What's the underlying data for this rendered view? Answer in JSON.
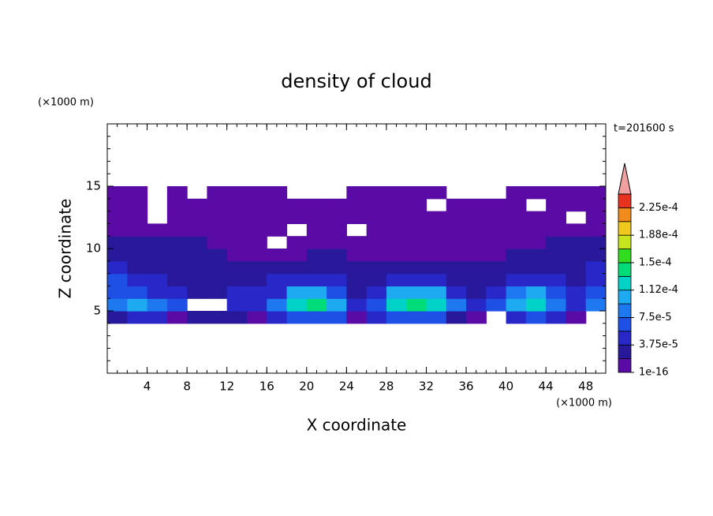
{
  "chart_data": {
    "type": "contour",
    "title": "density of cloud",
    "x_label": "X coordinate",
    "y_label": "Z coordinate",
    "x_unit": "(×1000 m)",
    "y_unit": "(×1000 m)",
    "annotation": "t=201600 s",
    "xlim": [
      0,
      50
    ],
    "ylim": [
      0,
      20
    ],
    "xticks": [
      4,
      8,
      12,
      16,
      20,
      24,
      28,
      32,
      36,
      40,
      44,
      48
    ],
    "yticks": [
      5,
      10,
      15
    ],
    "minor_tick_step": 1,
    "x": [
      1,
      3,
      5,
      7,
      9,
      11,
      13,
      15,
      17,
      19,
      21,
      23,
      25,
      27,
      29,
      31,
      33,
      35,
      37,
      39,
      41,
      43,
      45,
      47,
      49
    ],
    "z": [
      4.5,
      5.5,
      6.5,
      7.5,
      8.5,
      9.5,
      10.5,
      11.5,
      12.5,
      13.5,
      14.5
    ],
    "values": [
      [
        3e-05,
        5e-05,
        5e-05,
        1e-05,
        3e-05,
        3e-05,
        3e-05,
        1e-05,
        5e-05,
        7e-05,
        7e-05,
        7e-05,
        1e-05,
        5e-05,
        7e-05,
        7e-05,
        7e-05,
        3e-05,
        1e-05,
        null,
        5e-05,
        7e-05,
        5e-05,
        1e-05,
        null
      ],
      [
        9e-05,
        0.000105,
        9e-05,
        7e-05,
        null,
        null,
        5e-05,
        5e-05,
        9e-05,
        0.00012,
        0.00014,
        0.000105,
        5e-05,
        7e-05,
        0.00012,
        0.00014,
        0.00012,
        9e-05,
        5e-05,
        7e-05,
        0.000105,
        0.00012,
        9e-05,
        5e-05,
        9e-05
      ],
      [
        7e-05,
        7e-05,
        5e-05,
        5e-05,
        3e-05,
        3e-05,
        5e-05,
        5e-05,
        5e-05,
        0.000105,
        0.000105,
        7e-05,
        3e-05,
        5e-05,
        0.000105,
        0.000105,
        0.000105,
        5e-05,
        3e-05,
        5e-05,
        9e-05,
        0.000105,
        7e-05,
        5e-05,
        7e-05
      ],
      [
        7e-05,
        5e-05,
        5e-05,
        3e-05,
        3e-05,
        3e-05,
        3e-05,
        3e-05,
        5e-05,
        5e-05,
        5e-05,
        5e-05,
        3e-05,
        3e-05,
        5e-05,
        5e-05,
        5e-05,
        3e-05,
        3e-05,
        3e-05,
        5e-05,
        5e-05,
        5e-05,
        3e-05,
        5e-05
      ],
      [
        5e-05,
        3e-05,
        3e-05,
        3e-05,
        3e-05,
        3e-05,
        3e-05,
        3e-05,
        3e-05,
        3e-05,
        3e-05,
        3e-05,
        3e-05,
        3e-05,
        3e-05,
        3e-05,
        3e-05,
        3e-05,
        3e-05,
        3e-05,
        3e-05,
        3e-05,
        3e-05,
        3e-05,
        5e-05
      ],
      [
        3e-05,
        3e-05,
        3e-05,
        3e-05,
        3e-05,
        3e-05,
        1e-05,
        1e-05,
        1e-05,
        1e-05,
        3e-05,
        3e-05,
        1e-05,
        1e-05,
        1e-05,
        1e-05,
        1e-05,
        1e-05,
        1e-05,
        1e-05,
        3e-05,
        3e-05,
        3e-05,
        3e-05,
        3e-05
      ],
      [
        3e-05,
        3e-05,
        3e-05,
        3e-05,
        3e-05,
        1e-05,
        1e-05,
        1e-05,
        null,
        1e-05,
        1e-05,
        1e-05,
        1e-05,
        1e-05,
        1e-05,
        1e-05,
        1e-05,
        1e-05,
        1e-05,
        1e-05,
        1e-05,
        1e-05,
        3e-05,
        3e-05,
        3e-05
      ],
      [
        1e-05,
        1e-05,
        1e-05,
        1e-05,
        1e-05,
        1e-05,
        1e-05,
        1e-05,
        1e-05,
        null,
        1e-05,
        1e-05,
        null,
        1e-05,
        1e-05,
        1e-05,
        1e-05,
        1e-05,
        1e-05,
        1e-05,
        1e-05,
        1e-05,
        1e-05,
        1e-05,
        1e-05
      ],
      [
        1e-05,
        1e-05,
        null,
        1e-05,
        1e-05,
        1e-05,
        1e-05,
        1e-05,
        1e-05,
        1e-05,
        1e-05,
        1e-05,
        1e-05,
        1e-05,
        1e-05,
        1e-05,
        1e-05,
        1e-05,
        1e-05,
        1e-05,
        1e-05,
        1e-05,
        1e-05,
        null,
        1e-05
      ],
      [
        1e-05,
        1e-05,
        null,
        1e-05,
        1e-05,
        1e-05,
        1e-05,
        1e-05,
        1e-05,
        1e-05,
        1e-05,
        1e-05,
        1e-05,
        1e-05,
        1e-05,
        1e-05,
        null,
        1e-05,
        1e-05,
        1e-05,
        1e-05,
        null,
        1e-05,
        1e-05,
        1e-05
      ],
      [
        1e-05,
        1e-05,
        null,
        1e-05,
        null,
        1e-05,
        1e-05,
        1e-05,
        1e-05,
        null,
        null,
        null,
        1e-05,
        1e-05,
        1e-05,
        1e-05,
        1e-05,
        null,
        null,
        null,
        1e-05,
        1e-05,
        1e-05,
        1e-05,
        1e-05
      ]
    ],
    "levels": [
      1e-16,
      1.875e-05,
      3.75e-05,
      5.625e-05,
      7.5e-05,
      9.375e-05,
      0.0001125,
      0.00013125,
      0.00015,
      0.00016875,
      0.0001875,
      0.00020625,
      0.000225,
      0.00024375
    ],
    "colors": [
      "#5a0aa5",
      "#28199b",
      "#2828c8",
      "#1e50e6",
      "#1e78f0",
      "#1eaaf0",
      "#00d2c8",
      "#00dc78",
      "#32dc1e",
      "#c8e61e",
      "#f0c81e",
      "#f08c1e",
      "#e6321e"
    ],
    "over_color": "#f0a0a0",
    "colorbar_ticks": [
      1e-16,
      {
        "value": 3.75e-05,
        "label": "3.75e-5"
      },
      {
        "value": 7.5e-05,
        "label": "7.5e-5"
      },
      {
        "value": 0.0001125,
        "label": "1.12e-4"
      },
      {
        "value": 0.00015,
        "label": "1.5e-4"
      },
      {
        "value": 0.0001875,
        "label": "1.88e-4"
      },
      {
        "value": 0.000225,
        "label": "2.25e-4"
      }
    ]
  }
}
